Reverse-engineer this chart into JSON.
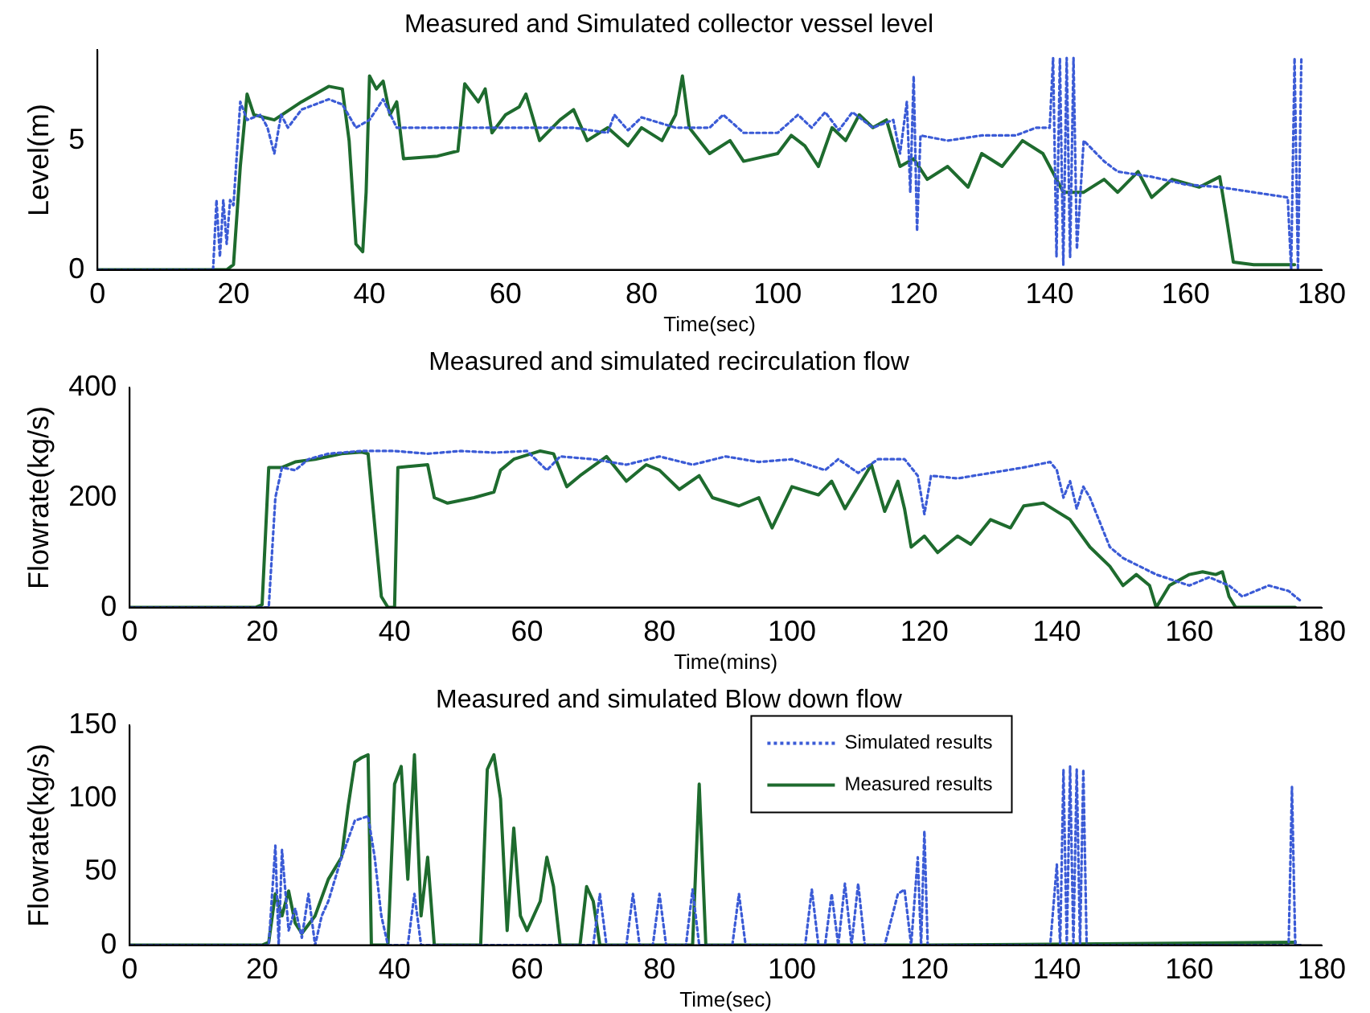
{
  "chart_data": [
    {
      "type": "line",
      "title": "Measured and Simulated collector vessel level",
      "xlabel": "Time(sec)",
      "ylabel": "Level(m)",
      "xlim": [
        0,
        180
      ],
      "xticks": [
        0,
        20,
        40,
        60,
        80,
        100,
        120,
        140,
        160,
        180
      ],
      "ylim": [
        0,
        8.5
      ],
      "yticks": [
        0,
        5
      ],
      "grid": false,
      "legend": false,
      "marker": "none",
      "series": [
        {
          "color": "#3b5bd6",
          "line_style": "dotted",
          "x": [
            0,
            17,
            17.5,
            18,
            18.5,
            19,
            19.5,
            20,
            21,
            22,
            24,
            25,
            26,
            27,
            28,
            30,
            34,
            36,
            38,
            40,
            42,
            44,
            50,
            60,
            70,
            75,
            76,
            78,
            80,
            85,
            90,
            92,
            95,
            100,
            103,
            105,
            107,
            109,
            111,
            114,
            117,
            118,
            119,
            119.5,
            120,
            120.5,
            121,
            125,
            130,
            135,
            138,
            140,
            140.5,
            141,
            141.5,
            142,
            142.5,
            143,
            143.5,
            144,
            145,
            148,
            150,
            155,
            160,
            165,
            170,
            175,
            175.5,
            176,
            176.5,
            177
          ],
          "values": [
            0,
            0,
            2.7,
            0.5,
            2.7,
            1,
            2.7,
            2.5,
            6.5,
            5.8,
            6,
            5.5,
            4.5,
            6,
            5.5,
            6.2,
            6.6,
            6.4,
            5.5,
            5.8,
            6.6,
            5.5,
            5.5,
            5.5,
            5.5,
            5.3,
            6,
            5.4,
            5.9,
            5.5,
            5.5,
            6,
            5.3,
            5.3,
            6,
            5.5,
            6.1,
            5.4,
            6.1,
            5.5,
            5.8,
            4.5,
            6.5,
            3,
            7.5,
            1.5,
            5.2,
            5,
            5.2,
            5.2,
            5.5,
            5.5,
            8.2,
            0.5,
            8.2,
            0.2,
            8.2,
            0.5,
            8.2,
            0.8,
            5,
            4.2,
            3.8,
            3.6,
            3.3,
            3.2,
            3,
            2.8,
            0,
            8.2,
            0,
            8.2
          ]
        },
        {
          "color": "#1e6b2e",
          "line_style": "solid",
          "x": [
            0,
            19,
            20,
            21,
            22,
            23,
            26,
            30,
            34,
            36,
            37,
            38,
            39,
            39.5,
            40,
            41,
            42,
            43,
            44,
            45,
            50,
            53,
            54,
            56,
            57,
            58,
            60,
            62,
            63,
            65,
            68,
            70,
            72,
            75,
            78,
            80,
            83,
            85,
            86,
            87,
            90,
            93,
            95,
            100,
            102,
            104,
            106,
            108,
            110,
            112,
            114,
            116,
            118,
            120,
            122,
            125,
            128,
            130,
            133,
            136,
            139,
            140,
            142,
            145,
            148,
            150,
            153,
            155,
            158,
            162,
            165,
            166,
            167,
            170,
            176
          ],
          "values": [
            0,
            0,
            0.2,
            4,
            6.8,
            6,
            5.8,
            6.5,
            7.1,
            7,
            5,
            1,
            0.7,
            3,
            7.5,
            7,
            7.3,
            6,
            6.5,
            4.3,
            4.4,
            4.6,
            7.2,
            6.5,
            7,
            5.3,
            6,
            6.3,
            6.8,
            5,
            5.8,
            6.2,
            5,
            5.5,
            4.8,
            5.5,
            5,
            6,
            7.5,
            5.5,
            4.5,
            5,
            4.2,
            4.5,
            5.2,
            4.8,
            4,
            5.5,
            5,
            6,
            5.5,
            5.8,
            4,
            4.3,
            3.5,
            4,
            3.2,
            4.5,
            4,
            5,
            4.5,
            4,
            3,
            3,
            3.5,
            3,
            3.8,
            2.8,
            3.5,
            3.2,
            3.6,
            2,
            0.3,
            0.2,
            0.2
          ]
        }
      ]
    },
    {
      "type": "line",
      "title": "Measured and simulated recirculation flow",
      "xlabel": "Time(mins)",
      "ylabel": "Flowrate(kg/s)",
      "xlim": [
        0,
        180
      ],
      "xticks": [
        0,
        20,
        40,
        60,
        80,
        100,
        120,
        140,
        160,
        180
      ],
      "ylim": [
        0,
        400
      ],
      "yticks": [
        0,
        200,
        400
      ],
      "grid": false,
      "legend": false,
      "marker": "none",
      "series": [
        {
          "color": "#3b5bd6",
          "line_style": "dotted",
          "x": [
            0,
            21,
            22,
            23,
            25,
            27,
            30,
            35,
            40,
            45,
            50,
            55,
            60,
            63,
            65,
            70,
            75,
            80,
            85,
            90,
            95,
            100,
            105,
            107,
            110,
            113,
            117,
            119,
            120,
            121,
            125,
            130,
            135,
            139,
            140,
            141,
            142,
            143,
            144,
            145,
            148,
            150,
            155,
            160,
            163,
            166,
            168,
            170,
            172,
            175,
            177
          ],
          "values": [
            0,
            0,
            200,
            255,
            250,
            270,
            280,
            285,
            285,
            280,
            285,
            282,
            285,
            250,
            275,
            270,
            260,
            275,
            260,
            275,
            265,
            270,
            250,
            270,
            245,
            270,
            270,
            240,
            170,
            240,
            235,
            245,
            255,
            265,
            250,
            200,
            230,
            180,
            220,
            200,
            110,
            90,
            60,
            40,
            55,
            40,
            20,
            30,
            40,
            30,
            10
          ]
        },
        {
          "color": "#1e6b2e",
          "line_style": "solid",
          "x": [
            0,
            19,
            20,
            21,
            23,
            25,
            28,
            32,
            35,
            36,
            37,
            38,
            39,
            40,
            40.5,
            45,
            46,
            48,
            52,
            55,
            56,
            58,
            62,
            64,
            66,
            68,
            72,
            75,
            78,
            80,
            83,
            86,
            88,
            92,
            95,
            97,
            100,
            104,
            106,
            108,
            112,
            114,
            116,
            117,
            118,
            120,
            122,
            125,
            127,
            130,
            133,
            135,
            138,
            140,
            142,
            145,
            148,
            150,
            152,
            154,
            155,
            157,
            160,
            162,
            164,
            165,
            166,
            167,
            176
          ],
          "values": [
            0,
            0,
            5,
            255,
            255,
            265,
            270,
            280,
            283,
            280,
            150,
            20,
            0,
            0,
            255,
            260,
            200,
            190,
            200,
            210,
            250,
            270,
            285,
            280,
            220,
            240,
            275,
            230,
            260,
            250,
            215,
            240,
            200,
            185,
            200,
            145,
            220,
            205,
            230,
            180,
            260,
            175,
            230,
            180,
            110,
            130,
            100,
            130,
            115,
            160,
            145,
            185,
            190,
            175,
            160,
            110,
            75,
            40,
            60,
            40,
            0,
            40,
            60,
            65,
            60,
            65,
            20,
            0,
            0
          ]
        }
      ]
    },
    {
      "type": "line",
      "title": "Measured and simulated Blow down flow",
      "xlabel": "Time(sec)",
      "ylabel": "Flowrate(kg/s)",
      "xlim": [
        0,
        180
      ],
      "xticks": [
        0,
        20,
        40,
        60,
        80,
        100,
        120,
        140,
        160,
        180
      ],
      "ylim": [
        0,
        150
      ],
      "yticks": [
        0,
        50,
        100,
        150
      ],
      "grid": false,
      "legend": "top right",
      "marker": "none",
      "series": [
        {
          "name": "Simulated results",
          "color": "#3b5bd6",
          "line_style": "dotted",
          "x": [
            0,
            21,
            22,
            22.5,
            23,
            24,
            25,
            26,
            27,
            28,
            29,
            30,
            32,
            34,
            36,
            37,
            38,
            39,
            42,
            43,
            44,
            70,
            71,
            72,
            75,
            76,
            77,
            79,
            80,
            81,
            84,
            85,
            86,
            91,
            92,
            93,
            102,
            103,
            104,
            105,
            106,
            107,
            108,
            109,
            110,
            111,
            114,
            116,
            117,
            118,
            119,
            119.5,
            120,
            120.5,
            139,
            140,
            140.5,
            141,
            141.5,
            142,
            142.5,
            143,
            143.5,
            144,
            144.5,
            145,
            175,
            175.5,
            176,
            177
          ],
          "values": [
            0,
            0,
            68,
            0,
            65,
            10,
            25,
            5,
            35,
            0,
            20,
            30,
            60,
            85,
            88,
            60,
            20,
            0,
            0,
            35,
            0,
            0,
            35,
            0,
            0,
            35,
            0,
            0,
            35,
            0,
            0,
            38,
            0,
            0,
            35,
            0,
            0,
            38,
            0,
            0,
            35,
            0,
            42,
            0,
            42,
            0,
            0,
            35,
            38,
            0,
            60,
            0,
            78,
            0,
            0,
            55,
            0,
            120,
            0,
            122,
            0,
            120,
            0,
            120,
            0,
            0,
            0,
            108,
            0,
            0
          ]
        },
        {
          "name": "Measured results",
          "color": "#1e6b2e",
          "line_style": "solid",
          "x": [
            0,
            20,
            21,
            22,
            23,
            24,
            25,
            26,
            28,
            30,
            32,
            33,
            34,
            35,
            36,
            36.5,
            39,
            40,
            41,
            42,
            43,
            44,
            45,
            46,
            53,
            54,
            55,
            56,
            57,
            58,
            59,
            60,
            62,
            63,
            64,
            65,
            68,
            69,
            70,
            71,
            85,
            86,
            87,
            120,
            176
          ],
          "values": [
            0,
            0,
            2,
            35,
            20,
            37,
            15,
            8,
            20,
            45,
            60,
            95,
            125,
            128,
            130,
            0,
            0,
            110,
            122,
            45,
            130,
            20,
            60,
            0,
            0,
            120,
            130,
            100,
            10,
            80,
            20,
            10,
            30,
            60,
            40,
            0,
            0,
            40,
            30,
            0,
            0,
            110,
            0,
            0,
            2
          ]
        }
      ]
    }
  ]
}
